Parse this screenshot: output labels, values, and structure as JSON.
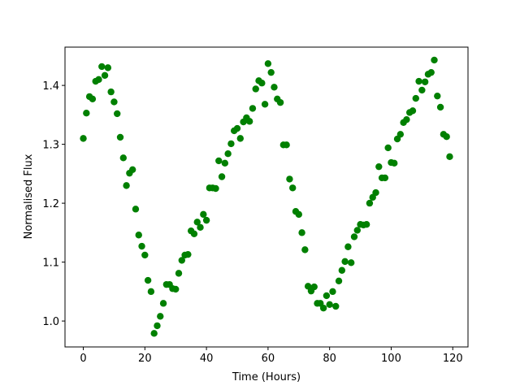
{
  "chart_data": {
    "type": "scatter",
    "xlabel": "Time (Hours)",
    "ylabel": "Normalised Flux",
    "color": "#008000",
    "x": [
      0,
      1,
      2,
      3,
      4,
      5,
      6,
      7,
      8,
      9,
      10,
      11,
      12,
      13,
      14,
      15,
      16,
      17,
      18,
      19,
      20,
      21,
      22,
      23,
      24,
      25,
      26,
      27,
      28,
      29,
      30,
      31,
      32,
      33,
      34,
      35,
      36,
      37,
      38,
      39,
      40,
      41,
      42,
      43,
      44,
      45,
      46,
      47,
      48,
      49,
      50,
      51,
      52,
      53,
      54,
      55,
      56,
      57,
      58,
      59,
      60,
      61,
      62,
      63,
      64,
      65,
      66,
      67,
      68,
      69,
      70,
      71,
      72,
      73,
      74,
      75,
      76,
      77,
      78,
      79,
      80,
      81,
      82,
      83,
      84,
      85,
      86,
      87,
      88,
      89,
      90,
      91,
      92,
      93,
      94,
      95,
      96,
      97,
      98,
      99,
      100,
      101,
      102,
      103,
      104,
      105,
      106,
      107,
      108,
      109,
      110,
      111,
      112,
      113,
      114,
      115,
      116,
      117,
      118,
      119
    ],
    "values": [
      1.31,
      1.353,
      1.381,
      1.377,
      1.407,
      1.41,
      1.432,
      1.417,
      1.43,
      1.389,
      1.372,
      1.352,
      1.312,
      1.277,
      1.23,
      1.251,
      1.257,
      1.19,
      1.146,
      1.127,
      1.112,
      1.069,
      1.05,
      0.979,
      0.992,
      1.008,
      1.03,
      1.062,
      1.062,
      1.055,
      1.054,
      1.081,
      1.103,
      1.112,
      1.113,
      1.153,
      1.148,
      1.168,
      1.159,
      1.181,
      1.171,
      1.226,
      1.226,
      1.225,
      1.272,
      1.245,
      1.268,
      1.284,
      1.301,
      1.323,
      1.327,
      1.31,
      1.338,
      1.345,
      1.339,
      1.361,
      1.394,
      1.408,
      1.404,
      1.368,
      1.437,
      1.422,
      1.397,
      1.377,
      1.371,
      1.299,
      1.299,
      1.241,
      1.226,
      1.186,
      1.181,
      1.15,
      1.121,
      1.059,
      1.051,
      1.058,
      1.03,
      1.03,
      1.022,
      1.043,
      1.028,
      1.05,
      1.025,
      1.068,
      1.086,
      1.101,
      1.126,
      1.099,
      1.143,
      1.154,
      1.164,
      1.163,
      1.164,
      1.2,
      1.21,
      1.218,
      1.262,
      1.243,
      1.243,
      1.294,
      1.269,
      1.268,
      1.309,
      1.317,
      1.337,
      1.342,
      1.354,
      1.357,
      1.378,
      1.407,
      1.392,
      1.406,
      1.419,
      1.422,
      1.443,
      1.382,
      1.363,
      1.317,
      1.313,
      1.279
    ],
    "xlim": [
      -5.95,
      124.95
    ],
    "xticks": [
      0,
      20,
      40,
      60,
      80,
      100,
      120
    ],
    "ylim": [
      0.956,
      1.465
    ],
    "yticks": [
      {
        "value": 1.0,
        "label": "1.0"
      },
      {
        "value": 1.1,
        "label": "1.1"
      },
      {
        "value": 1.2,
        "label": "1.2"
      },
      {
        "value": 1.3,
        "label": "1.3"
      },
      {
        "value": 1.4,
        "label": "1.4"
      }
    ]
  }
}
